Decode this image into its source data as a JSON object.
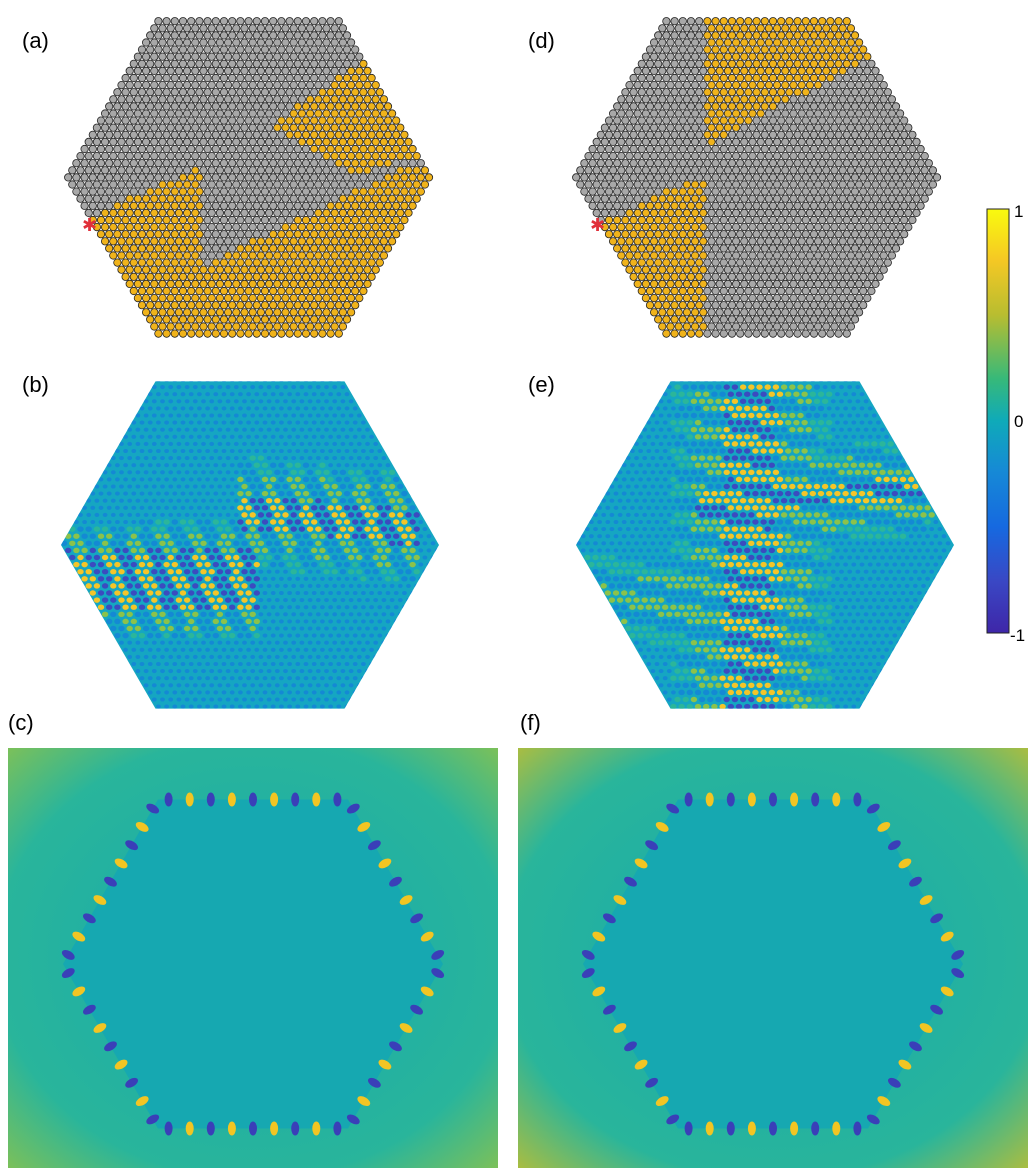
{
  "panels": [
    {
      "id": "a",
      "label": "(a)",
      "type": "lattice"
    },
    {
      "id": "b",
      "label": "(b)",
      "type": "field-hex"
    },
    {
      "id": "c",
      "label": "(c)",
      "type": "field-square"
    },
    {
      "id": "d",
      "label": "(d)",
      "type": "lattice"
    },
    {
      "id": "e",
      "label": "(e)",
      "type": "field-hex"
    },
    {
      "id": "f",
      "label": "(f)",
      "type": "field-square"
    }
  ],
  "colorbar": {
    "ticks": [
      "1",
      "0",
      "-1"
    ],
    "range": [
      -1,
      1
    ],
    "colormap": "parula"
  },
  "colors": {
    "lattice_gray": "#a8a8a8",
    "lattice_gold": "#f0b31b",
    "source_marker": "#e0303a",
    "field_base": "#1aa3b8"
  },
  "source_marker_icon": "asterisk-icon"
}
